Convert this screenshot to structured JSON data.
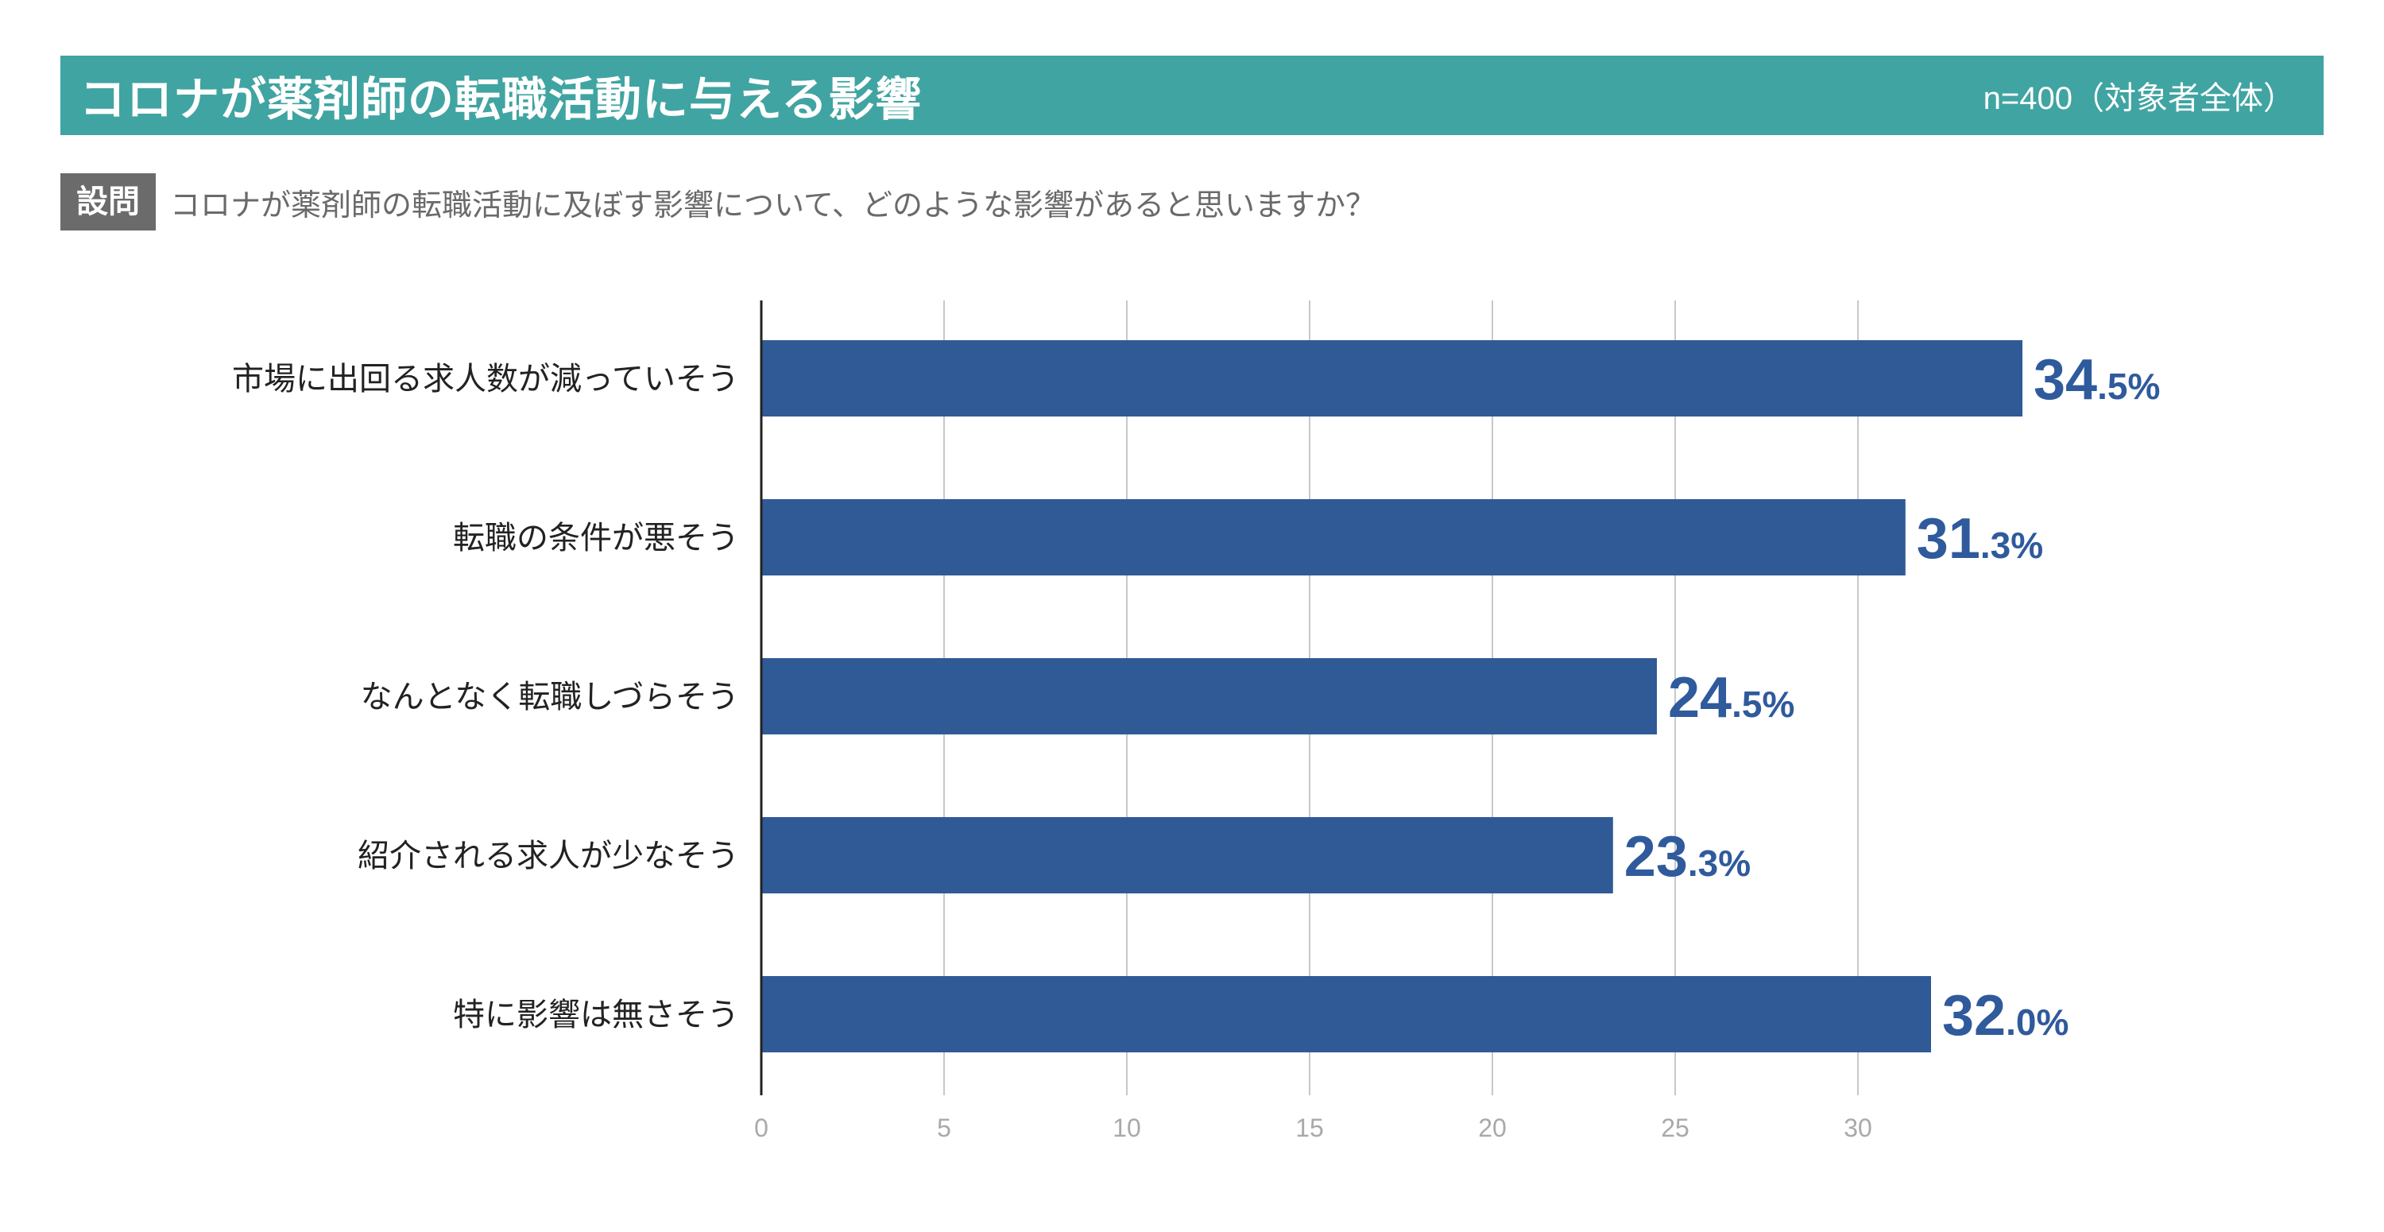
{
  "header": {
    "title": "コロナが薬剤師の転職活動に与える影響",
    "sample": "n=400（対象者全体）"
  },
  "question": {
    "badge": "設問",
    "text": "コロナが薬剤師の転職活動に及ぼす影響について、どのような影響があると思いますか？"
  },
  "colors": {
    "title_bar": "#40a4a2",
    "bar": "#305a96",
    "value_text": "#2f5a9c",
    "grid": "#c8c8c8",
    "badge": "#6b6b6b"
  },
  "chart_data": {
    "type": "bar",
    "orientation": "horizontal",
    "categories": [
      "市場に出回る求人数が減っていそう",
      "転職の条件が悪そう",
      "なんとなく転職しづらそう",
      "紹介される求人が少なそう",
      "特に影響は無さそう"
    ],
    "values": [
      34.5,
      31.3,
      24.5,
      23.3,
      32.0
    ],
    "value_labels": [
      {
        "int": "34",
        "dec": ".5%"
      },
      {
        "int": "31",
        "dec": ".3%"
      },
      {
        "int": "24",
        "dec": ".5%"
      },
      {
        "int": "23",
        "dec": ".3%"
      },
      {
        "int": "32",
        "dec": ".0%"
      }
    ],
    "xticks": [
      0,
      5,
      10,
      15,
      20,
      25,
      30
    ],
    "xlim": [
      0,
      35
    ],
    "grid": true,
    "title": "",
    "xlabel": "",
    "ylabel": ""
  }
}
